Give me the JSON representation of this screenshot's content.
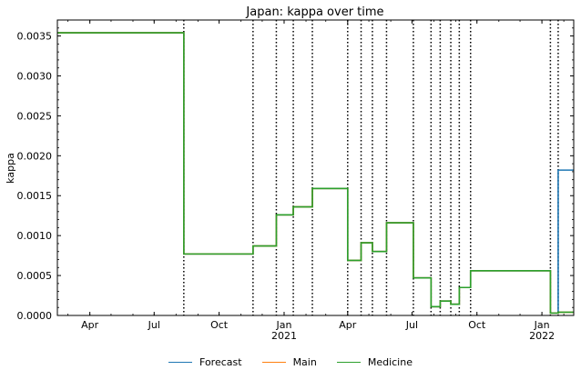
{
  "chart_data": {
    "type": "line",
    "title": "Japan: kappa over time",
    "xlabel": "",
    "ylabel": "kappa",
    "x_range": [
      "2020-02-15",
      "2022-02-15"
    ],
    "ylim": [
      0,
      0.0037
    ],
    "y_ticks": [
      "0.0000",
      "0.0005",
      "0.0010",
      "0.0015",
      "0.0020",
      "0.0025",
      "0.0030",
      "0.0035"
    ],
    "x_ticks": [
      {
        "date": "2020-04-01",
        "label": "Apr",
        "sub": ""
      },
      {
        "date": "2020-07-01",
        "label": "Jul",
        "sub": ""
      },
      {
        "date": "2020-10-01",
        "label": "Oct",
        "sub": ""
      },
      {
        "date": "2021-01-01",
        "label": "Jan",
        "sub": "2021"
      },
      {
        "date": "2021-04-01",
        "label": "Apr",
        "sub": ""
      },
      {
        "date": "2021-07-01",
        "label": "Jul",
        "sub": ""
      },
      {
        "date": "2021-10-01",
        "label": "Oct",
        "sub": ""
      },
      {
        "date": "2022-01-01",
        "label": "Jan",
        "sub": "2022"
      }
    ],
    "change_points": [
      "2020-08-12",
      "2020-11-18",
      "2020-12-21",
      "2021-01-14",
      "2021-02-10",
      "2021-04-01",
      "2021-04-20",
      "2021-05-06",
      "2021-05-26",
      "2021-07-03",
      "2021-07-28",
      "2021-08-10",
      "2021-08-25",
      "2021-09-06",
      "2021-09-22",
      "2022-01-13",
      "2022-01-24"
    ],
    "series": [
      {
        "name": "Forecast",
        "color": "#1f77b4",
        "x": [
          "2020-02-15",
          "2020-08-12",
          "2020-11-18",
          "2020-12-21",
          "2021-01-14",
          "2021-02-10",
          "2021-04-01",
          "2021-04-20",
          "2021-05-06",
          "2021-05-26",
          "2021-07-03",
          "2021-07-28",
          "2021-08-10",
          "2021-08-25",
          "2021-09-06",
          "2021-09-22",
          "2022-01-13",
          "2022-01-24",
          "2022-02-15"
        ],
        "y": [
          0.00354,
          0.00077,
          0.00087,
          0.00126,
          0.00136,
          0.00159,
          0.00069,
          0.00091,
          0.0008,
          0.00116,
          0.00047,
          0.00011,
          0.00018,
          0.00014,
          0.00035,
          0.00056,
          3e-05,
          0.00182,
          0.00182
        ]
      },
      {
        "name": "Main",
        "color": "#ff7f0e",
        "x": [
          "2020-02-15",
          "2020-08-12",
          "2020-11-18",
          "2020-12-21",
          "2021-01-14",
          "2021-02-10",
          "2021-04-01",
          "2021-04-20",
          "2021-05-06",
          "2021-05-26",
          "2021-07-03",
          "2021-07-28",
          "2021-08-10",
          "2021-08-25",
          "2021-09-06",
          "2021-09-22",
          "2022-01-13",
          "2022-01-24",
          "2022-02-15"
        ],
        "y": [
          0.00354,
          0.00077,
          0.00087,
          0.00126,
          0.00136,
          0.00159,
          0.00069,
          0.00091,
          0.0008,
          0.00116,
          0.00047,
          0.00011,
          0.00018,
          0.00014,
          0.00035,
          0.00056,
          3e-05,
          4e-05,
          4e-05
        ]
      },
      {
        "name": "Medicine",
        "color": "#2ca02c",
        "x": [
          "2020-02-15",
          "2020-08-12",
          "2020-11-18",
          "2020-12-21",
          "2021-01-14",
          "2021-02-10",
          "2021-04-01",
          "2021-04-20",
          "2021-05-06",
          "2021-05-26",
          "2021-07-03",
          "2021-07-28",
          "2021-08-10",
          "2021-08-25",
          "2021-09-06",
          "2021-09-22",
          "2022-01-13",
          "2022-01-24",
          "2022-02-15"
        ],
        "y": [
          0.00354,
          0.00077,
          0.00087,
          0.00126,
          0.00136,
          0.00159,
          0.00069,
          0.00091,
          0.0008,
          0.00116,
          0.00047,
          0.00011,
          0.00018,
          0.00014,
          0.00035,
          0.00056,
          3e-05,
          4e-05,
          4e-05
        ]
      }
    ],
    "legend_position": "bottom-center"
  }
}
